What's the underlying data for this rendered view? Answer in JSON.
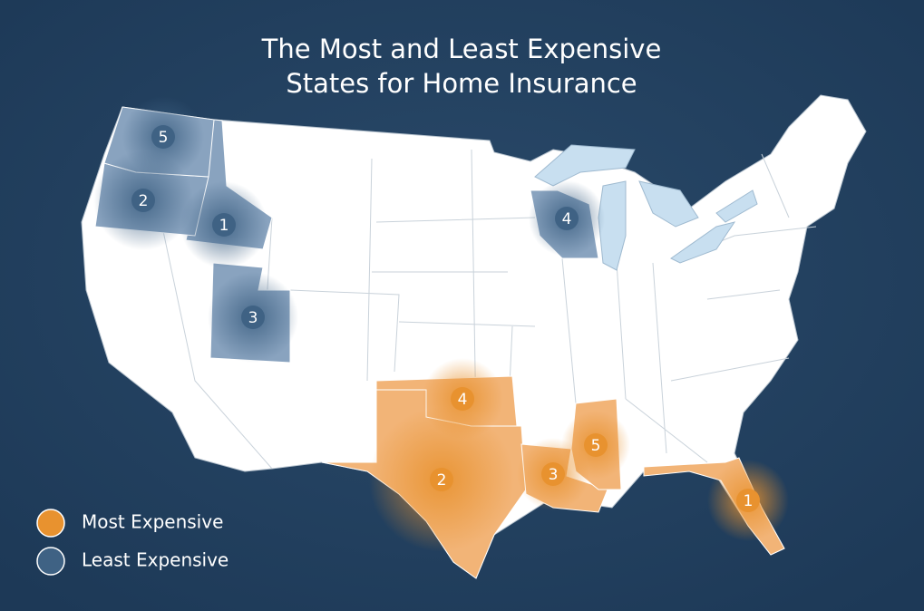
{
  "title_lines": [
    "The Most and Least Expensive",
    "States for Home Insurance"
  ],
  "groups": [
    {
      "label": "Most Expensive",
      "color": "#e8922f",
      "area_color": "#f2b477",
      "ranks": [
        1,
        2,
        3,
        4,
        5
      ]
    },
    {
      "label": "Least Expensive",
      "color": "#3f6284",
      "area_color": "#89a3bf",
      "ranks": [
        1,
        2,
        3,
        4,
        5
      ]
    }
  ]
}
